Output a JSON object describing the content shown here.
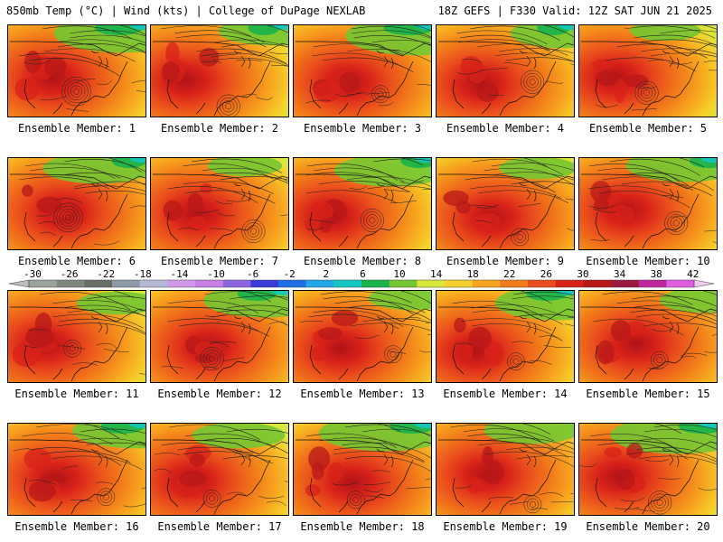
{
  "header": {
    "left": "850mb Temp (°C) | Wind (kts) | College of DuPage NEXLAB",
    "right": "18Z GEFS | F330 Valid: 12Z SAT JUN 21 2025"
  },
  "panels": [
    {
      "label": "Ensemble Member: 1"
    },
    {
      "label": "Ensemble Member: 2"
    },
    {
      "label": "Ensemble Member: 3"
    },
    {
      "label": "Ensemble Member: 4"
    },
    {
      "label": "Ensemble Member: 5"
    },
    {
      "label": "Ensemble Member: 6"
    },
    {
      "label": "Ensemble Member: 7"
    },
    {
      "label": "Ensemble Member: 8"
    },
    {
      "label": "Ensemble Member: 9"
    },
    {
      "label": "Ensemble Member: 10"
    },
    {
      "label": "Ensemble Member: 11"
    },
    {
      "label": "Ensemble Member: 12"
    },
    {
      "label": "Ensemble Member: 13"
    },
    {
      "label": "Ensemble Member: 14"
    },
    {
      "label": "Ensemble Member: 15"
    },
    {
      "label": "Ensemble Member: 16"
    },
    {
      "label": "Ensemble Member: 17"
    },
    {
      "label": "Ensemble Member: 18"
    },
    {
      "label": "Ensemble Member: 19"
    },
    {
      "label": "Ensemble Member: 20"
    }
  ],
  "colorbar": {
    "ticks": [
      "-30",
      "-26",
      "-22",
      "-18",
      "-14",
      "-10",
      "-6",
      "-2",
      "2",
      "6",
      "10",
      "14",
      "18",
      "22",
      "26",
      "30",
      "34",
      "38",
      "42"
    ],
    "colors": [
      "#9aa39a",
      "#7e877e",
      "#666e66",
      "#8f9aa8",
      "#b6b9d6",
      "#cf98e8",
      "#c77fe6",
      "#8d65e0",
      "#3a3ad8",
      "#1e6fe6",
      "#1fa6e8",
      "#12c7c0",
      "#18b24a",
      "#74c632",
      "#d8e83a",
      "#f5d02a",
      "#f7a51f",
      "#f27c1a",
      "#ea4d1c",
      "#d8221a",
      "#b81818",
      "#9a1a3e",
      "#c0249a",
      "#df5ce0"
    ]
  }
}
